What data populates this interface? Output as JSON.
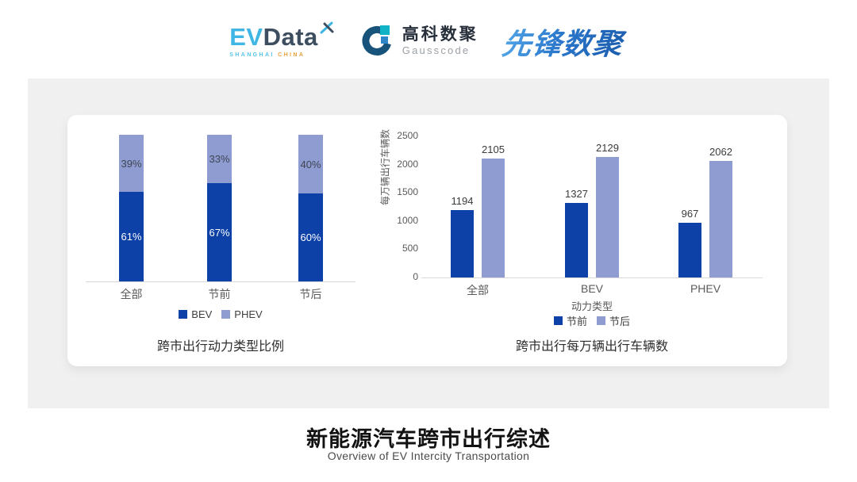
{
  "header": {
    "evdata": {
      "ev": "EV",
      "data": "Data",
      "tagline_city": "SHANGHAI",
      "tagline_country": "CHINA"
    },
    "gausscode": {
      "name_cn": "高科数聚",
      "name_en": "Gausscode"
    },
    "xianfeng": {
      "name": "先锋数聚"
    }
  },
  "colors": {
    "bev_dark_blue": "#0d41a8",
    "phev_light_blue": "#8e9cd2",
    "axis_text": "#595959",
    "baseline": "#d9d9d9",
    "panel_gray": "#f0f0f1"
  },
  "chart_data": [
    {
      "type": "bar",
      "subtype": "stacked-100-percent",
      "title": "跨市出行动力类型比例",
      "categories": [
        "全部",
        "节前",
        "节后"
      ],
      "series": [
        {
          "name": "BEV",
          "values": [
            61,
            67,
            60
          ],
          "color": "#0d41a8",
          "label_color": "#ffffff"
        },
        {
          "name": "PHEV",
          "values": [
            39,
            33,
            40
          ],
          "color": "#8e9cd2",
          "label_color": "#3f4551"
        }
      ],
      "value_suffix": "%",
      "ylim": [
        0,
        100
      ],
      "grid": false,
      "legend_position": "bottom"
    },
    {
      "type": "bar",
      "subtype": "grouped",
      "title": "跨市出行每万辆出行车辆数",
      "categories": [
        "全部",
        "BEV",
        "PHEV"
      ],
      "xlabel": "动力类型",
      "ylabel": "每万辆出行车辆数",
      "yticks": [
        0,
        500,
        1000,
        1500,
        2000,
        2500
      ],
      "ylim": [
        0,
        2500
      ],
      "series": [
        {
          "name": "节前",
          "values": [
            1194,
            1327,
            967
          ],
          "color": "#0d41a8"
        },
        {
          "name": "节后",
          "values": [
            2105,
            2129,
            2062
          ],
          "color": "#8e9cd2"
        }
      ],
      "grid": false,
      "legend_position": "bottom"
    }
  ],
  "footer": {
    "title": "新能源汽车跨市出行综述",
    "subtitle": "Overview of EV Intercity Transportation"
  }
}
